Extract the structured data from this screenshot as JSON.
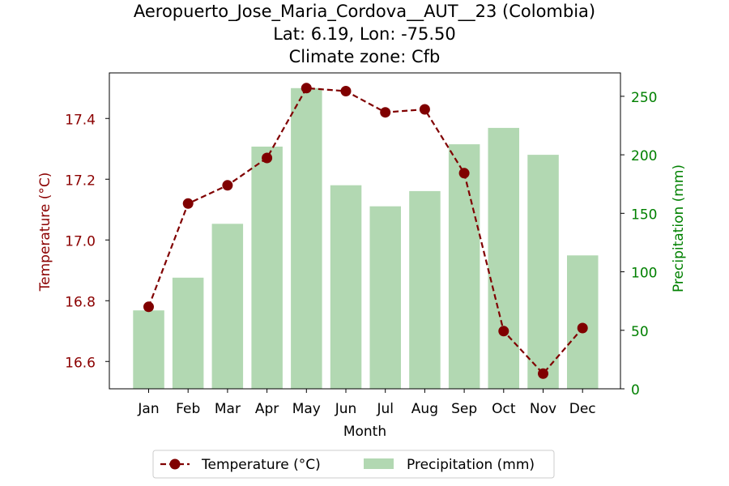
{
  "chart_data": {
    "type": "bar",
    "title_lines": [
      "Aeropuerto_Jose_Maria_Cordova__AUT__23 (Colombia)",
      "Lat: 6.19, Lon: -75.50",
      "Climate zone: Cfb"
    ],
    "xlabel": "Month",
    "ylabel_left": "Temperature (°C)",
    "ylabel_right": "Precipitation (mm)",
    "categories": [
      "Jan",
      "Feb",
      "Mar",
      "Apr",
      "May",
      "Jun",
      "Jul",
      "Aug",
      "Sep",
      "Oct",
      "Nov",
      "Dec"
    ],
    "series": [
      {
        "name": "Temperature (°C)",
        "type": "line",
        "axis": "left",
        "color": "#800000",
        "line_style": "dashed",
        "marker": "circle",
        "values": [
          16.78,
          17.12,
          17.18,
          17.27,
          17.5,
          17.49,
          17.42,
          17.43,
          17.22,
          16.7,
          16.56,
          16.71
        ]
      },
      {
        "name": "Precipitation (mm)",
        "type": "bar",
        "axis": "right",
        "color": "#b2d8b2",
        "values": [
          67,
          95,
          141,
          207,
          257,
          174,
          156,
          169,
          209,
          223,
          200,
          114
        ]
      }
    ],
    "y_left": {
      "range": [
        16.51,
        17.55
      ],
      "ticks": [
        16.6,
        16.8,
        17.0,
        17.2,
        17.4
      ],
      "tick_labels": [
        "16.6",
        "16.8",
        "17.0",
        "17.2",
        "17.4"
      ],
      "color": "#8b0000"
    },
    "y_right": {
      "range": [
        0,
        270
      ],
      "ticks": [
        0,
        50,
        100,
        150,
        200,
        250
      ],
      "tick_labels": [
        "0",
        "50",
        "100",
        "150",
        "200",
        "250"
      ],
      "color": "#008000"
    },
    "grid": false,
    "legend_position": "bottom-center"
  }
}
